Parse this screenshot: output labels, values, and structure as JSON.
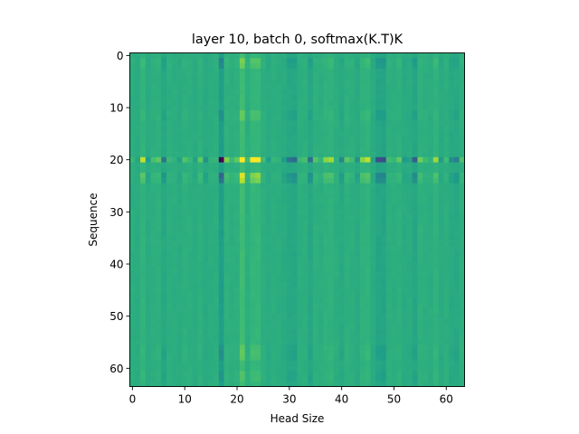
{
  "chart_data": {
    "type": "heatmap",
    "title": "layer 10, batch 0, softmax(K.T)K",
    "xlabel": "Head Size",
    "ylabel": "Sequence",
    "x_ticks": [
      0,
      10,
      20,
      30,
      40,
      50,
      60
    ],
    "y_ticks": [
      0,
      10,
      20,
      30,
      40,
      50,
      60
    ],
    "xlim": [
      -0.5,
      63.5
    ],
    "ylim": [
      63.5,
      -0.5
    ],
    "grid": false,
    "colormap": "viridis",
    "n_rows": 64,
    "n_cols": 64,
    "base_value": 0.62,
    "highlight_rows": [
      {
        "row": 20,
        "strength": 2.6
      },
      {
        "row": 23,
        "strength": 1.1
      },
      {
        "row": 24,
        "strength": 0.9
      },
      {
        "row": 1,
        "strength": 0.6
      },
      {
        "row": 2,
        "strength": 0.5
      },
      {
        "row": 11,
        "strength": 0.45
      },
      {
        "row": 12,
        "strength": 0.45
      },
      {
        "row": 56,
        "strength": 0.4
      },
      {
        "row": 57,
        "strength": 0.45
      },
      {
        "row": 58,
        "strength": 0.4
      },
      {
        "row": 61,
        "strength": 0.35
      },
      {
        "row": 62,
        "strength": 0.35
      }
    ],
    "column_pattern": [
      0.03,
      -0.02,
      0.22,
      -0.05,
      0.06,
      0.1,
      -0.18,
      0.05,
      0.02,
      -0.04,
      0.08,
      0.04,
      -0.03,
      0.1,
      -0.08,
      0.02,
      0.04,
      -0.55,
      0.14,
      0.05,
      0.1,
      0.6,
      0.05,
      0.35,
      0.38,
      0.06,
      -0.05,
      0.04,
      0.02,
      -0.06,
      -0.18,
      -0.22,
      0.05,
      0.06,
      -0.2,
      0.08,
      0.03,
      0.15,
      0.18,
      0.02,
      -0.12,
      0.1,
      0.05,
      -0.08,
      0.15,
      0.22,
      -0.04,
      -0.28,
      -0.3,
      0.05,
      0.04,
      0.1,
      -0.06,
      -0.04,
      -0.25,
      0.12,
      0.05,
      0.02,
      0.18,
      -0.05,
      0.05,
      -0.1,
      -0.15,
      0.08
    ]
  }
}
